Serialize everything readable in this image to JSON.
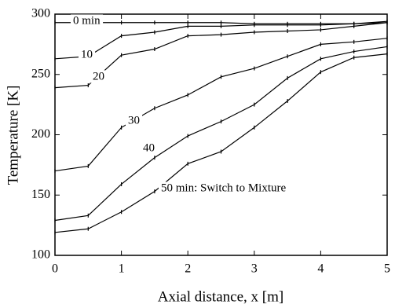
{
  "chart_data": {
    "type": "line",
    "x_label": "Axial distance, x [m]",
    "y_label": "Temperature [K]",
    "x": [
      0,
      0.5,
      1,
      1.5,
      2,
      2.5,
      3,
      3.5,
      4,
      4.5,
      5
    ],
    "series": [
      {
        "name": "0 min",
        "color": "#000000",
        "values": [
          293,
          293,
          293,
          293,
          293,
          293,
          292,
          292,
          292,
          292,
          294
        ]
      },
      {
        "name": "10",
        "color": "#000000",
        "values": [
          263,
          265,
          282,
          285,
          290,
          290,
          291,
          291,
          291,
          292,
          293
        ]
      },
      {
        "name": "20",
        "color": "#000000",
        "values": [
          239,
          241,
          266,
          271,
          282,
          283,
          285,
          286,
          287,
          290,
          293
        ]
      },
      {
        "name": "30",
        "color": "#000000",
        "values": [
          170,
          174,
          206,
          222,
          233,
          248,
          255,
          265,
          275,
          277,
          280
        ]
      },
      {
        "name": "40",
        "color": "#000000",
        "values": [
          129,
          133,
          159,
          181,
          199,
          211,
          225,
          247,
          263,
          269,
          273
        ]
      },
      {
        "name": "50 min: Switch to Mixture",
        "color": "#000000",
        "values": [
          119,
          122,
          136,
          153,
          176,
          186,
          206,
          228,
          252,
          264,
          267
        ]
      }
    ],
    "xlim": [
      0,
      5
    ],
    "xticks": [
      0,
      1,
      2,
      3,
      4,
      5
    ],
    "ylim": [
      100,
      300
    ],
    "yticks": [
      100,
      150,
      200,
      250,
      300
    ]
  }
}
